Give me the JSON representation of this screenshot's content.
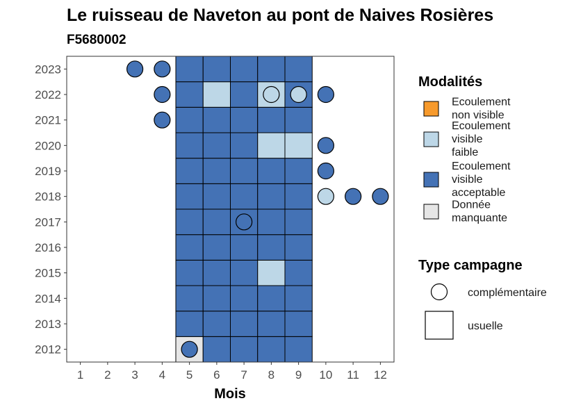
{
  "chart_data": {
    "type": "heatmap",
    "title": "Le ruisseau de Naveton au pont de Naives Rosières",
    "subtitle": "F5680002",
    "xlabel": "Mois",
    "ylabel": "",
    "x_ticks": [
      "1",
      "2",
      "3",
      "4",
      "5",
      "6",
      "7",
      "8",
      "9",
      "10",
      "11",
      "12"
    ],
    "y_ticks": [
      "2012",
      "2013",
      "2014",
      "2015",
      "2016",
      "2017",
      "2018",
      "2019",
      "2020",
      "2021",
      "2022",
      "2023"
    ],
    "xlim": [
      0.5,
      12.5
    ],
    "ylim": [
      2011.5,
      2023.5
    ],
    "grid": false,
    "colors": {
      "Ecoulement non visible": "#f79a2c",
      "Ecoulement visible faible": "#bdd7e7",
      "Ecoulement visible acceptable": "#4472b5",
      "Donnée manquante": "#e6e6e6"
    },
    "usuelle": [
      {
        "year": 2012,
        "month": 5,
        "modalite": "Donnée manquante"
      },
      {
        "year": 2012,
        "month": 6,
        "modalite": "Ecoulement visible acceptable"
      },
      {
        "year": 2012,
        "month": 7,
        "modalite": "Ecoulement visible acceptable"
      },
      {
        "year": 2012,
        "month": 8,
        "modalite": "Ecoulement visible acceptable"
      },
      {
        "year": 2012,
        "month": 9,
        "modalite": "Ecoulement visible acceptable"
      },
      {
        "year": 2013,
        "month": 5,
        "modalite": "Ecoulement visible acceptable"
      },
      {
        "year": 2013,
        "month": 6,
        "modalite": "Ecoulement visible acceptable"
      },
      {
        "year": 2013,
        "month": 7,
        "modalite": "Ecoulement visible acceptable"
      },
      {
        "year": 2013,
        "month": 8,
        "modalite": "Ecoulement visible acceptable"
      },
      {
        "year": 2013,
        "month": 9,
        "modalite": "Ecoulement visible acceptable"
      },
      {
        "year": 2014,
        "month": 5,
        "modalite": "Ecoulement visible acceptable"
      },
      {
        "year": 2014,
        "month": 6,
        "modalite": "Ecoulement visible acceptable"
      },
      {
        "year": 2014,
        "month": 7,
        "modalite": "Ecoulement visible acceptable"
      },
      {
        "year": 2014,
        "month": 8,
        "modalite": "Ecoulement visible acceptable"
      },
      {
        "year": 2014,
        "month": 9,
        "modalite": "Ecoulement visible acceptable"
      },
      {
        "year": 2015,
        "month": 5,
        "modalite": "Ecoulement visible acceptable"
      },
      {
        "year": 2015,
        "month": 6,
        "modalite": "Ecoulement visible acceptable"
      },
      {
        "year": 2015,
        "month": 7,
        "modalite": "Ecoulement visible acceptable"
      },
      {
        "year": 2015,
        "month": 8,
        "modalite": "Ecoulement visible faible"
      },
      {
        "year": 2015,
        "month": 9,
        "modalite": "Ecoulement visible acceptable"
      },
      {
        "year": 2016,
        "month": 5,
        "modalite": "Ecoulement visible acceptable"
      },
      {
        "year": 2016,
        "month": 6,
        "modalite": "Ecoulement visible acceptable"
      },
      {
        "year": 2016,
        "month": 7,
        "modalite": "Ecoulement visible acceptable"
      },
      {
        "year": 2016,
        "month": 8,
        "modalite": "Ecoulement visible acceptable"
      },
      {
        "year": 2016,
        "month": 9,
        "modalite": "Ecoulement visible acceptable"
      },
      {
        "year": 2017,
        "month": 5,
        "modalite": "Ecoulement visible acceptable"
      },
      {
        "year": 2017,
        "month": 6,
        "modalite": "Ecoulement visible acceptable"
      },
      {
        "year": 2017,
        "month": 7,
        "modalite": "Ecoulement visible acceptable"
      },
      {
        "year": 2017,
        "month": 8,
        "modalite": "Ecoulement visible acceptable"
      },
      {
        "year": 2017,
        "month": 9,
        "modalite": "Ecoulement visible acceptable"
      },
      {
        "year": 2018,
        "month": 5,
        "modalite": "Ecoulement visible acceptable"
      },
      {
        "year": 2018,
        "month": 6,
        "modalite": "Ecoulement visible acceptable"
      },
      {
        "year": 2018,
        "month": 7,
        "modalite": "Ecoulement visible acceptable"
      },
      {
        "year": 2018,
        "month": 8,
        "modalite": "Ecoulement visible acceptable"
      },
      {
        "year": 2018,
        "month": 9,
        "modalite": "Ecoulement visible acceptable"
      },
      {
        "year": 2019,
        "month": 5,
        "modalite": "Ecoulement visible acceptable"
      },
      {
        "year": 2019,
        "month": 6,
        "modalite": "Ecoulement visible acceptable"
      },
      {
        "year": 2019,
        "month": 7,
        "modalite": "Ecoulement visible acceptable"
      },
      {
        "year": 2019,
        "month": 8,
        "modalite": "Ecoulement visible acceptable"
      },
      {
        "year": 2019,
        "month": 9,
        "modalite": "Ecoulement visible acceptable"
      },
      {
        "year": 2020,
        "month": 5,
        "modalite": "Ecoulement visible acceptable"
      },
      {
        "year": 2020,
        "month": 6,
        "modalite": "Ecoulement visible acceptable"
      },
      {
        "year": 2020,
        "month": 7,
        "modalite": "Ecoulement visible acceptable"
      },
      {
        "year": 2020,
        "month": 8,
        "modalite": "Ecoulement visible faible"
      },
      {
        "year": 2020,
        "month": 9,
        "modalite": "Ecoulement visible faible"
      },
      {
        "year": 2021,
        "month": 5,
        "modalite": "Ecoulement visible acceptable"
      },
      {
        "year": 2021,
        "month": 6,
        "modalite": "Ecoulement visible acceptable"
      },
      {
        "year": 2021,
        "month": 7,
        "modalite": "Ecoulement visible acceptable"
      },
      {
        "year": 2021,
        "month": 8,
        "modalite": "Ecoulement visible acceptable"
      },
      {
        "year": 2021,
        "month": 9,
        "modalite": "Ecoulement visible acceptable"
      },
      {
        "year": 2022,
        "month": 5,
        "modalite": "Ecoulement visible acceptable"
      },
      {
        "year": 2022,
        "month": 6,
        "modalite": "Ecoulement visible faible"
      },
      {
        "year": 2022,
        "month": 7,
        "modalite": "Ecoulement visible acceptable"
      },
      {
        "year": 2022,
        "month": 8,
        "modalite": "Ecoulement visible faible"
      },
      {
        "year": 2022,
        "month": 9,
        "modalite": "Ecoulement visible acceptable"
      },
      {
        "year": 2023,
        "month": 5,
        "modalite": "Ecoulement visible acceptable"
      },
      {
        "year": 2023,
        "month": 6,
        "modalite": "Ecoulement visible acceptable"
      },
      {
        "year": 2023,
        "month": 7,
        "modalite": "Ecoulement visible acceptable"
      },
      {
        "year": 2023,
        "month": 8,
        "modalite": "Ecoulement visible acceptable"
      },
      {
        "year": 2023,
        "month": 9,
        "modalite": "Ecoulement visible acceptable"
      }
    ],
    "complementaire": [
      {
        "year": 2012,
        "month": 5,
        "modalite": "Ecoulement visible acceptable"
      },
      {
        "year": 2017,
        "month": 7,
        "modalite": "Ecoulement visible acceptable"
      },
      {
        "year": 2018,
        "month": 10,
        "modalite": "Ecoulement visible faible"
      },
      {
        "year": 2018,
        "month": 11,
        "modalite": "Ecoulement visible acceptable"
      },
      {
        "year": 2018,
        "month": 12,
        "modalite": "Ecoulement visible acceptable"
      },
      {
        "year": 2019,
        "month": 10,
        "modalite": "Ecoulement visible acceptable"
      },
      {
        "year": 2020,
        "month": 10,
        "modalite": "Ecoulement visible acceptable"
      },
      {
        "year": 2021,
        "month": 4,
        "modalite": "Ecoulement visible acceptable"
      },
      {
        "year": 2022,
        "month": 4,
        "modalite": "Ecoulement visible acceptable"
      },
      {
        "year": 2022,
        "month": 8,
        "modalite": "Ecoulement visible faible"
      },
      {
        "year": 2022,
        "month": 9,
        "modalite": "Ecoulement visible faible"
      },
      {
        "year": 2022,
        "month": 10,
        "modalite": "Ecoulement visible acceptable"
      },
      {
        "year": 2023,
        "month": 3,
        "modalite": "Ecoulement visible acceptable"
      },
      {
        "year": 2023,
        "month": 4,
        "modalite": "Ecoulement visible acceptable"
      }
    ],
    "legend": {
      "placement": "right",
      "modalites_title": "Modalités",
      "modalites": [
        {
          "key": "Ecoulement non visible",
          "lines": [
            "Ecoulement",
            "non visible"
          ]
        },
        {
          "key": "Ecoulement visible faible",
          "lines": [
            "Ecoulement",
            "visible",
            "faible"
          ]
        },
        {
          "key": "Ecoulement visible acceptable",
          "lines": [
            "Ecoulement",
            "visible",
            "acceptable"
          ]
        },
        {
          "key": "Donnée manquante",
          "lines": [
            "Donnée",
            "manquante"
          ]
        }
      ],
      "campagne_title": "Type campagne",
      "campagnes": [
        {
          "key": "complementaire",
          "label": "complémentaire"
        },
        {
          "key": "usuelle",
          "label": "usuelle"
        }
      ]
    }
  }
}
